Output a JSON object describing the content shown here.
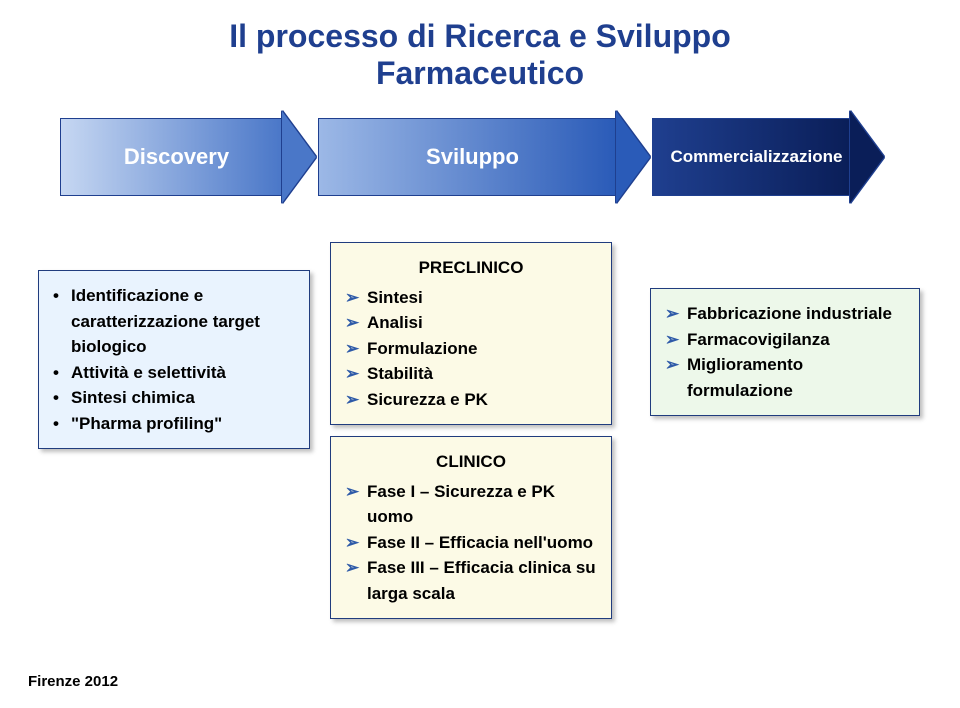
{
  "title_line1": "Il processo di Ricerca e Sviluppo",
  "title_line2": "Farmaceutico",
  "arrows": {
    "a1": {
      "label": "Discovery",
      "grad_from": "#c6d7f2",
      "grad_to": "#4a77c8"
    },
    "a2": {
      "label": "Sviluppo",
      "grad_from": "#9cb8e6",
      "grad_to": "#2a5bb8"
    },
    "a3": {
      "label": "Commercializzazione",
      "grad_from": "#1f3f8f",
      "grad_to": "#0a1e58"
    }
  },
  "discovery": {
    "items": [
      "Identificazione e caratterizzazione target biologico",
      "Attività e selettività",
      "Sintesi chimica",
      "\"Pharma profiling\""
    ]
  },
  "preclinico": {
    "header": "PRECLINICO",
    "items": [
      "Sintesi",
      "Analisi",
      "Formulazione",
      "Stabilità",
      "Sicurezza e PK"
    ]
  },
  "clinico": {
    "header": "CLINICO",
    "items": [
      "Fase I – Sicurezza e PK uomo",
      "Fase II – Efficacia nell'uomo",
      "Fase III – Efficacia clinica su larga scala"
    ]
  },
  "comm": {
    "items": [
      "Fabbricazione industriale",
      "Farmacovigilanza",
      "Miglioramento formulazione"
    ]
  },
  "footer": "Firenze 2012",
  "colors": {
    "title": "#1f3f8f",
    "panel_border": "#203c7e",
    "panel_discovery_bg": "#e9f3fe",
    "panel_sviluppo_bg": "#fcfae6",
    "panel_comm_bg": "#edf8ea",
    "arrow_marker": "#2e5aa8",
    "dot_marker": "#000000"
  }
}
